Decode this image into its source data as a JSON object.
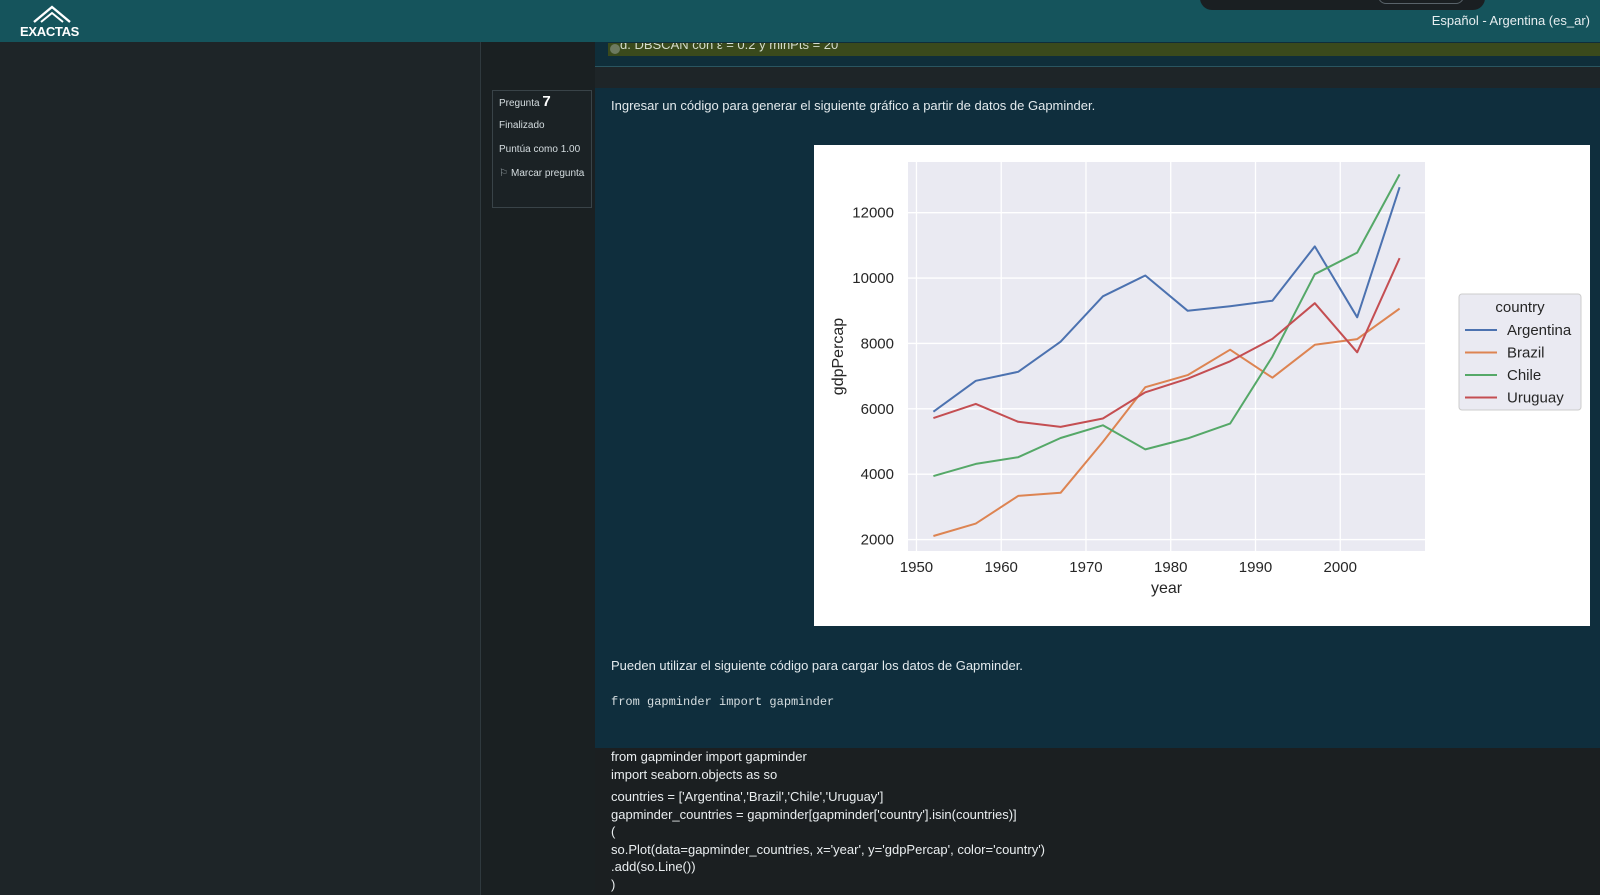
{
  "navbar": {
    "logo_text": "EXACTAS",
    "language": "Español - Argentina (es_ar)"
  },
  "previous_question": {
    "answer_text": "d. DBSCAN con ε = 0.2 y minPts = 20"
  },
  "question_info": {
    "label": "Pregunta",
    "number": "7",
    "state": "Finalizado",
    "score": "Puntúa como 1.00",
    "flag_label": "Marcar pregunta"
  },
  "question": {
    "text": "Ingresar un código para generar el siguiente gráfico a partir de datos de Gapminder.",
    "text2": "Pueden utilizar el siguiente código para cargar los datos de Gapminder.",
    "code": "from gapminder import gapminder"
  },
  "chart_data": {
    "type": "line",
    "xlabel": "year",
    "ylabel": "gdpPercap",
    "x": [
      1952,
      1957,
      1962,
      1967,
      1972,
      1977,
      1982,
      1987,
      1992,
      1997,
      2002,
      2007
    ],
    "xlim": [
      1949,
      2010
    ],
    "ylim": [
      1650,
      13550
    ],
    "xticks": [
      "1950",
      "1960",
      "1970",
      "1980",
      "1990",
      "2000"
    ],
    "yticks": [
      "2000",
      "4000",
      "6000",
      "8000",
      "10000",
      "12000"
    ],
    "grid": true,
    "legend": {
      "title": "country",
      "placement": "right"
    },
    "series": [
      {
        "name": "Argentina",
        "color": "#4c72b0",
        "values": [
          5911,
          6857,
          7133,
          8053,
          9443,
          10079,
          8998,
          9140,
          9308,
          10967,
          8798,
          12779
        ]
      },
      {
        "name": "Brazil",
        "color": "#dd8452",
        "values": [
          2109,
          2487,
          3337,
          3430,
          4986,
          6660,
          7031,
          7807,
          6950,
          7958,
          8131,
          9066
        ]
      },
      {
        "name": "Chile",
        "color": "#55a868",
        "values": [
          3940,
          4316,
          4519,
          5107,
          5494,
          4757,
          5096,
          5547,
          7596,
          10118,
          10779,
          13172
        ]
      },
      {
        "name": "Uruguay",
        "color": "#c44e52",
        "values": [
          5717,
          6151,
          5603,
          5445,
          5703,
          6504,
          6920,
          7452,
          8137,
          9231,
          7727,
          10611
        ]
      }
    ]
  },
  "answer": {
    "lines": [
      "from gapminder import gapminder",
      "import seaborn.objects as so",
      "",
      "countries = ['Argentina','Brazil','Chile','Uruguay']",
      "gapminder_countries = gapminder[gapminder['country'].isin(countries)]",
      "(",
      "so.Plot(data=gapminder_countries, x='year', y='gdpPercap', color='country')",
      ".add(so.Line())",
      ")"
    ]
  }
}
